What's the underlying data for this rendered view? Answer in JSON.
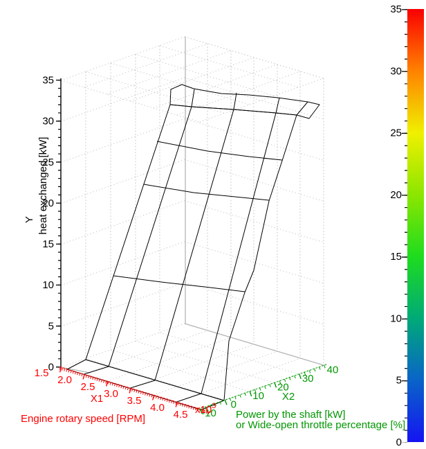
{
  "y_axis": {
    "name": "Y",
    "label": "heat exchanged [kW]",
    "ticks": [
      "35",
      "30",
      "25",
      "20",
      "15",
      "10",
      "5",
      "0"
    ]
  },
  "x1_axis": {
    "name": "X1",
    "title": "Engine rotary speed [RPM]",
    "ticks": [
      "1.5",
      "2.0",
      "2.5",
      "3.0",
      "3.5",
      "4.0",
      "4.5"
    ],
    "multiplier_base": "x10",
    "multiplier_exp": "3",
    "color": "#ff0000"
  },
  "x2_axis": {
    "name": "X2",
    "title_line1": "Power by the shaft [kW]",
    "title_line2": "or Wide-open throttle percentage [%]",
    "ticks": [
      "-10",
      "0",
      "10",
      "20",
      "30",
      "40"
    ],
    "color": "#009600"
  },
  "colorbar": {
    "min": 0,
    "max": 35,
    "ticks": [
      "35",
      "30",
      "25",
      "20",
      "15",
      "10",
      "5",
      "0"
    ],
    "gradient": [
      {
        "value": 35,
        "color": "#fa0000"
      },
      {
        "value": 30,
        "color": "#ff8200"
      },
      {
        "value": 25,
        "color": "#f0f000"
      },
      {
        "value": 20,
        "color": "#8ce600"
      },
      {
        "value": 15,
        "color": "#1edc1e"
      },
      {
        "value": 10,
        "color": "#00aa78"
      },
      {
        "value": 5,
        "color": "#0a64c8"
      },
      {
        "value": 0,
        "color": "#1414f2"
      }
    ]
  },
  "chart_data": {
    "type": "surface",
    "title": "",
    "x1": {
      "name": "X1",
      "label": "Engine rotary speed [RPM]",
      "axis_ticks": [
        1.5,
        2.0,
        2.5,
        3.0,
        3.5,
        4.0,
        4.5
      ],
      "multiplier": "x10^3",
      "grid_values": [
        1.5,
        2.0,
        3.0,
        4.0,
        4.5
      ]
    },
    "x2": {
      "name": "X2",
      "label": "Power by the shaft [kW] or Wide-open throttle percentage [%]",
      "axis_ticks": [
        -10,
        0,
        10,
        20,
        30,
        40
      ],
      "grid_values": [
        -10,
        0,
        10,
        20,
        30,
        40
      ]
    },
    "y": {
      "name": "Y",
      "label": "heat exchanged [kW]",
      "range": [
        0,
        35
      ],
      "axis_ticks": [
        0,
        5,
        10,
        15,
        20,
        25,
        30,
        35
      ]
    },
    "values_approx_rows_x2_cols_x1": [
      [
        0,
        0,
        0,
        0,
        0
      ],
      [
        0.3,
        0.3,
        0.3,
        0.3,
        0.3
      ],
      [
        10,
        10.5,
        11,
        11,
        10.5
      ],
      [
        20,
        20.5,
        21,
        21,
        20.5
      ],
      [
        26,
        26.5,
        27,
        27,
        26
      ],
      [
        33,
        34,
        34.5,
        34,
        32.5
      ]
    ],
    "colormap": "rainbow blue(0) to red(35)",
    "legend_position": "colorbar-right",
    "grid": true,
    "note": "surface values estimated from axis scales and colorbar"
  }
}
